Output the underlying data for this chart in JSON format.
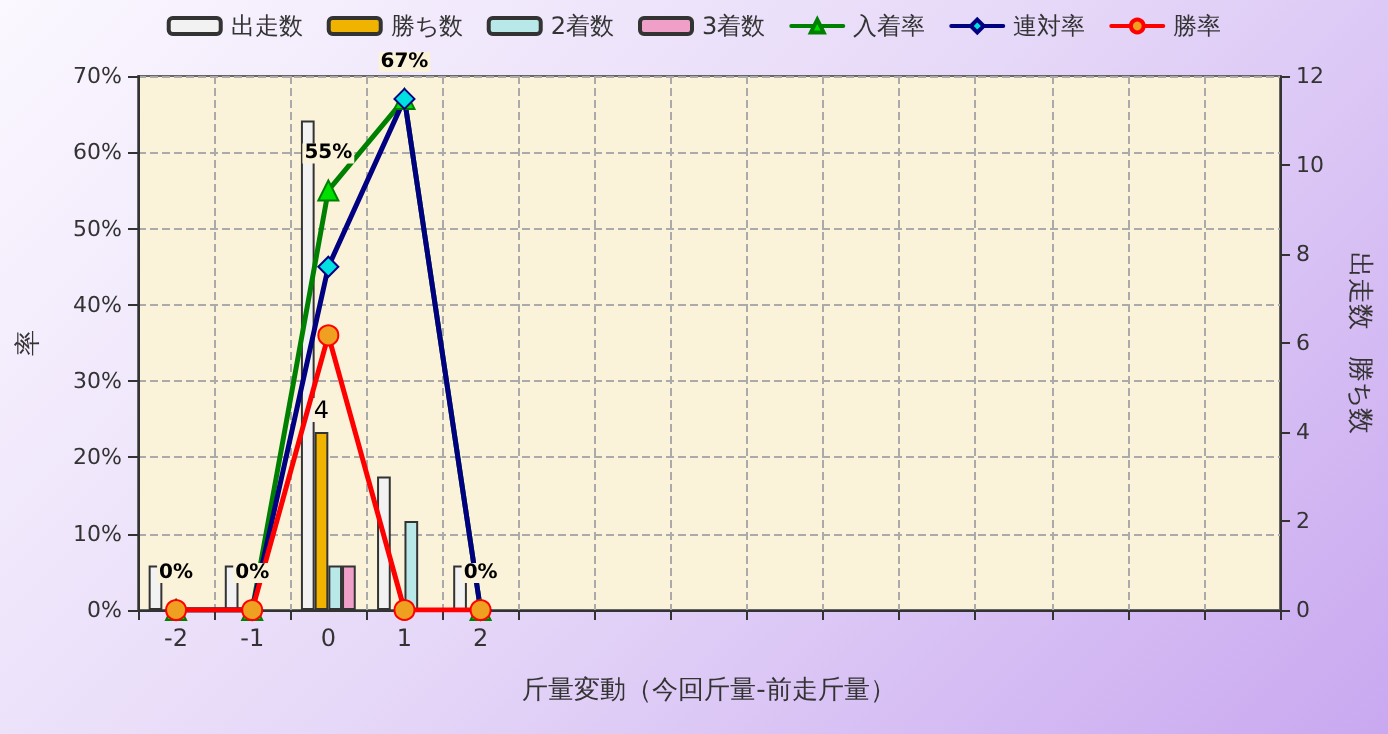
{
  "chart_data": {
    "type": "bar",
    "xlabel": "斤量変動（今回斤量-前走斤量）",
    "ylabel": "率",
    "y2label": "出走数　勝ち数",
    "categories": [
      "-2",
      "-1",
      "0",
      "1",
      "2",
      null,
      null,
      null,
      null,
      null,
      null,
      null,
      null,
      null,
      null
    ],
    "series": [
      {
        "name": "出走数",
        "axis": "y2",
        "color": "#f2f2f2",
        "values": [
          1,
          1,
          11,
          3,
          1,
          null,
          null,
          null,
          null,
          null,
          null,
          null,
          null,
          null,
          null
        ]
      },
      {
        "name": "勝ち数",
        "axis": "y2",
        "color": "#f0b400",
        "values": [
          null,
          null,
          4,
          null,
          null,
          null,
          null,
          null,
          null,
          null,
          null,
          null,
          null,
          null,
          null
        ],
        "value_labels": [
          null,
          null,
          "4",
          null,
          null,
          null,
          null,
          null,
          null,
          null,
          null,
          null,
          null,
          null,
          null
        ]
      },
      {
        "name": "2着数",
        "axis": "y2",
        "color": "#b8e8e8",
        "values": [
          null,
          null,
          1,
          2,
          null,
          null,
          null,
          null,
          null,
          null,
          null,
          null,
          null,
          null,
          null
        ]
      },
      {
        "name": "3着数",
        "axis": "y2",
        "color": "#f0a0c8",
        "values": [
          null,
          null,
          1,
          null,
          null,
          null,
          null,
          null,
          null,
          null,
          null,
          null,
          null,
          null,
          null
        ]
      },
      {
        "name": "入着率",
        "type": "line",
        "color": "#008000",
        "marker": "triangle",
        "values": [
          0,
          0,
          55,
          67,
          0,
          null,
          null,
          null,
          null,
          null,
          null,
          null,
          null,
          null,
          null
        ],
        "value_labels": [
          "0%",
          "0%",
          "55%",
          "67%",
          "0%",
          null,
          null,
          null,
          null,
          null,
          null,
          null,
          null,
          null,
          null
        ]
      },
      {
        "name": "連対率",
        "type": "line",
        "color": "#000080",
        "marker": "diamond",
        "values": [
          0,
          0,
          45,
          67,
          0,
          null,
          null,
          null,
          null,
          null,
          null,
          null,
          null,
          null,
          null
        ]
      },
      {
        "name": "勝率",
        "type": "line",
        "color": "#ff0000",
        "marker": "circle",
        "values": [
          0,
          0,
          36,
          0,
          0,
          null,
          null,
          null,
          null,
          null,
          null,
          null,
          null,
          null,
          null
        ]
      }
    ],
    "ylim": [
      0,
      70
    ],
    "yticks": [
      {
        "value": 0,
        "label": "0%"
      },
      {
        "value": 10,
        "label": "10%"
      },
      {
        "value": 20,
        "label": "20%"
      },
      {
        "value": 30,
        "label": "30%"
      },
      {
        "value": 40,
        "label": "40%"
      },
      {
        "value": 50,
        "label": "50%"
      },
      {
        "value": 60,
        "label": "60%"
      },
      {
        "value": 70,
        "label": "70%"
      }
    ],
    "y2lim": [
      0,
      12
    ],
    "y2ticks": [
      0,
      2,
      4,
      6,
      8,
      10,
      12
    ],
    "grid": true,
    "legend": "top",
    "line_style": "solid"
  }
}
